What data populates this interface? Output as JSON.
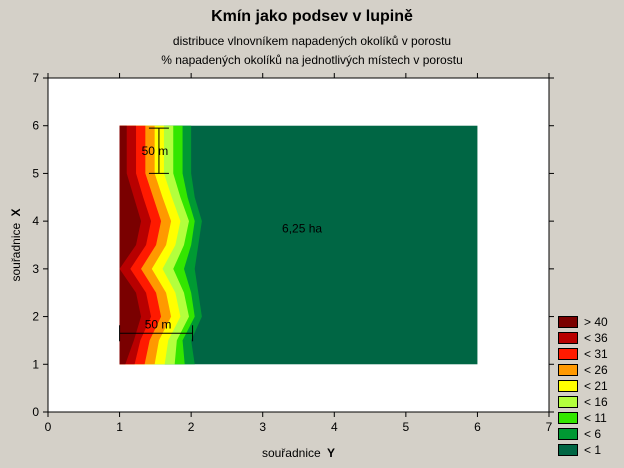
{
  "chart_data": {
    "type": "heatmap",
    "title": "Kmín jako podsev v lupině",
    "subtitles": [
      "distribuce vlnovníkem napadených okolíků v porostu",
      "% napadených okolíků na jednotlivých místech v porostu"
    ],
    "xlabel_main": "souřadnice",
    "xlabel_var": "Y",
    "ylabel_main": "souřadnice",
    "ylabel_var": "X",
    "xlim": [
      0,
      7
    ],
    "ylim": [
      0,
      7
    ],
    "xticks": [
      "0",
      "1",
      "2",
      "3",
      "4",
      "5",
      "6",
      "7"
    ],
    "yticks": [
      "0",
      "1",
      "2",
      "3",
      "4",
      "5",
      "6",
      "7"
    ],
    "field": {
      "y_range": [
        1,
        6
      ],
      "x_range": [
        1,
        6
      ]
    },
    "contour_levels": [
      {
        "label": "> 40",
        "color": "#7a0000"
      },
      {
        "label": "< 36",
        "color": "#b80000"
      },
      {
        "label": "< 31",
        "color": "#ff1a00"
      },
      {
        "label": "< 26",
        "color": "#ff9900"
      },
      {
        "label": "< 21",
        "color": "#ffff00"
      },
      {
        "label": "< 16",
        "color": "#b3ff3d"
      },
      {
        "label": "< 11",
        "color": "#33e600"
      },
      {
        "label": "< 6",
        "color": "#009933"
      },
      {
        "label": "< 1",
        "color": "#006644"
      }
    ],
    "gradient_profile": [
      {
        "x": 1.0,
        "offsets": [
          0.0,
          0.01,
          0.02,
          0.03,
          0.04,
          0.05,
          0.06,
          0.08,
          0.1,
          0.13
        ]
      },
      {
        "x": 1.5,
        "offsets": [
          -0.05,
          -0.02,
          0.05,
          0.08,
          0.1,
          0.12,
          0.14,
          0.2,
          0.25,
          0.28
        ]
      },
      {
        "x": 2.0,
        "offsets": [
          0.1,
          0.15,
          0.22,
          0.25,
          0.27,
          0.28,
          0.29,
          0.3,
          0.45,
          0.5
        ]
      },
      {
        "x": 2.5,
        "offsets": [
          0.05,
          0.1,
          0.15,
          0.18,
          0.2,
          0.21,
          0.22,
          0.23,
          0.35,
          0.4
        ]
      },
      {
        "x": 3.0,
        "offsets": [
          0.0,
          0.0,
          0.0,
          0.0,
          0.0,
          0.0,
          0.0,
          0.0,
          0.0,
          0.0
        ]
      },
      {
        "x": 3.5,
        "offsets": [
          0.05,
          0.1,
          0.15,
          0.18,
          0.2,
          0.21,
          0.22,
          0.23,
          0.35,
          0.4
        ]
      },
      {
        "x": 4.0,
        "offsets": [
          0.1,
          0.15,
          0.22,
          0.25,
          0.27,
          0.28,
          0.29,
          0.3,
          0.45,
          0.5
        ]
      },
      {
        "x": 4.5,
        "offsets": [
          0.0,
          0.05,
          0.1,
          0.13,
          0.15,
          0.17,
          0.18,
          0.2,
          0.3,
          0.35
        ]
      },
      {
        "x": 5.0,
        "offsets": [
          -0.05,
          -0.02,
          0.0,
          0.02,
          0.04,
          0.06,
          0.08,
          0.1,
          0.15,
          0.2
        ]
      },
      {
        "x": 5.5,
        "offsets": [
          -0.05,
          -0.02,
          0.0,
          0.02,
          0.04,
          0.06,
          0.08,
          0.1,
          0.15,
          0.2
        ]
      },
      {
        "x": 6.0,
        "offsets": [
          -0.05,
          -0.02,
          0.0,
          0.02,
          0.04,
          0.06,
          0.08,
          0.1,
          0.15,
          0.2
        ]
      }
    ],
    "annotations": [
      {
        "text": "50 m",
        "kind": "vertical-scale",
        "y": 1.55,
        "x_from": 5.0,
        "x_to": 5.95
      },
      {
        "text": "50 m",
        "kind": "horizontal-scale",
        "x": 1.65,
        "y_from": 1.0,
        "y_to": 2.02
      },
      {
        "text": "6,25 ha",
        "kind": "label",
        "y": 3.55,
        "x": 3.85
      }
    ]
  }
}
